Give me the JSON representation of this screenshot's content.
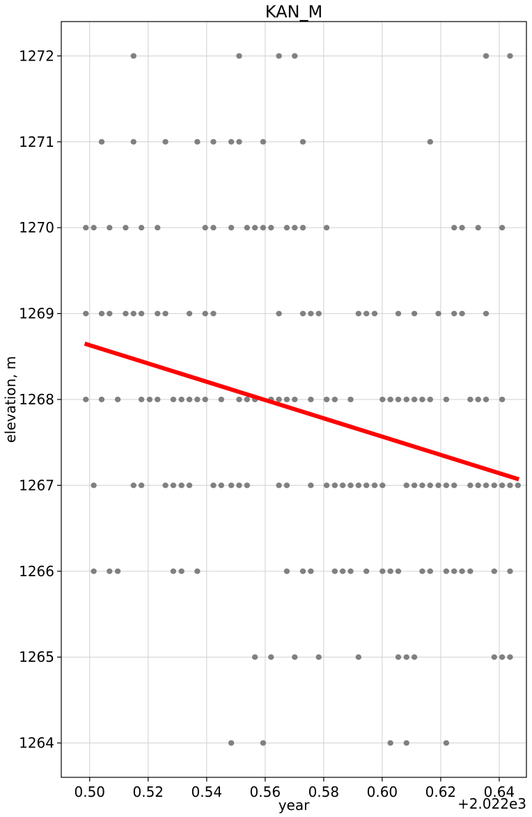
{
  "chart_data": {
    "type": "scatter",
    "title": "KAN_M",
    "xlabel": "year",
    "ylabel": "elevation, m",
    "x_offset_label": "+2.022e3",
    "xlim": [
      0.4903,
      0.6493
    ],
    "ylim": [
      1263.6,
      1272.4
    ],
    "xticks": [
      0.5,
      0.52,
      0.54,
      0.56,
      0.58,
      0.6,
      0.62,
      0.64
    ],
    "xtick_labels": [
      "0.50",
      "0.52",
      "0.54",
      "0.56",
      "0.58",
      "0.60",
      "0.62",
      "0.64"
    ],
    "yticks": [
      1264,
      1265,
      1266,
      1267,
      1268,
      1269,
      1270,
      1271,
      1272
    ],
    "ytick_labels": [
      "1264",
      "1265",
      "1266",
      "1267",
      "1268",
      "1269",
      "1270",
      "1271",
      "1272"
    ],
    "grid": true,
    "point_color": "#808080",
    "trend_color": "#ff0000",
    "series": [
      {
        "kind": "points",
        "points": [
          [
            0.515,
            1272
          ],
          [
            0.5511,
            1272
          ],
          [
            0.5647,
            1272
          ],
          [
            0.5701,
            1272
          ],
          [
            0.6355,
            1272
          ],
          [
            0.6437,
            1272
          ],
          [
            0.5041,
            1271
          ],
          [
            0.515,
            1271
          ],
          [
            0.5259,
            1271
          ],
          [
            0.5368,
            1271
          ],
          [
            0.5423,
            1271
          ],
          [
            0.5484,
            1271
          ],
          [
            0.5511,
            1271
          ],
          [
            0.5593,
            1271
          ],
          [
            0.5729,
            1271
          ],
          [
            0.6164,
            1271
          ],
          [
            0.4987,
            1270
          ],
          [
            0.5014,
            1270
          ],
          [
            0.5068,
            1270
          ],
          [
            0.5123,
            1270
          ],
          [
            0.5177,
            1270
          ],
          [
            0.5232,
            1270
          ],
          [
            0.5395,
            1270
          ],
          [
            0.5423,
            1270
          ],
          [
            0.5484,
            1270
          ],
          [
            0.5538,
            1270
          ],
          [
            0.5565,
            1270
          ],
          [
            0.5593,
            1270
          ],
          [
            0.562,
            1270
          ],
          [
            0.5674,
            1270
          ],
          [
            0.5701,
            1270
          ],
          [
            0.5729,
            1270
          ],
          [
            0.581,
            1270
          ],
          [
            0.6246,
            1270
          ],
          [
            0.6273,
            1270
          ],
          [
            0.6328,
            1270
          ],
          [
            0.641,
            1270
          ],
          [
            0.4987,
            1269
          ],
          [
            0.5041,
            1269
          ],
          [
            0.5068,
            1269
          ],
          [
            0.5123,
            1269
          ],
          [
            0.515,
            1269
          ],
          [
            0.5177,
            1269
          ],
          [
            0.5232,
            1269
          ],
          [
            0.5259,
            1269
          ],
          [
            0.5341,
            1269
          ],
          [
            0.5395,
            1269
          ],
          [
            0.5423,
            1269
          ],
          [
            0.5647,
            1269
          ],
          [
            0.5729,
            1269
          ],
          [
            0.5756,
            1269
          ],
          [
            0.5783,
            1269
          ],
          [
            0.5919,
            1269
          ],
          [
            0.5946,
            1269
          ],
          [
            0.5974,
            1269
          ],
          [
            0.6055,
            1269
          ],
          [
            0.611,
            1269
          ],
          [
            0.6192,
            1269
          ],
          [
            0.6246,
            1269
          ],
          [
            0.6273,
            1269
          ],
          [
            0.6355,
            1269
          ],
          [
            0.4987,
            1268
          ],
          [
            0.5041,
            1268
          ],
          [
            0.5096,
            1268
          ],
          [
            0.5177,
            1268
          ],
          [
            0.5205,
            1268
          ],
          [
            0.5232,
            1268
          ],
          [
            0.5286,
            1268
          ],
          [
            0.5314,
            1268
          ],
          [
            0.5341,
            1268
          ],
          [
            0.5368,
            1268
          ],
          [
            0.5395,
            1268
          ],
          [
            0.545,
            1268
          ],
          [
            0.5511,
            1268
          ],
          [
            0.5538,
            1268
          ],
          [
            0.5565,
            1268
          ],
          [
            0.562,
            1268
          ],
          [
            0.5647,
            1268
          ],
          [
            0.5674,
            1268
          ],
          [
            0.5701,
            1268
          ],
          [
            0.5756,
            1268
          ],
          [
            0.581,
            1268
          ],
          [
            0.5838,
            1268
          ],
          [
            0.5892,
            1268
          ],
          [
            0.6001,
            1268
          ],
          [
            0.6028,
            1268
          ],
          [
            0.6055,
            1268
          ],
          [
            0.6083,
            1268
          ],
          [
            0.611,
            1268
          ],
          [
            0.6137,
            1268
          ],
          [
            0.6164,
            1268
          ],
          [
            0.6219,
            1268
          ],
          [
            0.6301,
            1268
          ],
          [
            0.6328,
            1268
          ],
          [
            0.6355,
            1268
          ],
          [
            0.641,
            1268
          ],
          [
            0.5014,
            1267
          ],
          [
            0.515,
            1267
          ],
          [
            0.5177,
            1267
          ],
          [
            0.5259,
            1267
          ],
          [
            0.5286,
            1267
          ],
          [
            0.5314,
            1267
          ],
          [
            0.5341,
            1267
          ],
          [
            0.5423,
            1267
          ],
          [
            0.545,
            1267
          ],
          [
            0.5484,
            1267
          ],
          [
            0.5511,
            1267
          ],
          [
            0.5538,
            1267
          ],
          [
            0.5647,
            1267
          ],
          [
            0.5674,
            1267
          ],
          [
            0.5756,
            1267
          ],
          [
            0.581,
            1267
          ],
          [
            0.5838,
            1267
          ],
          [
            0.5865,
            1267
          ],
          [
            0.5892,
            1267
          ],
          [
            0.5919,
            1267
          ],
          [
            0.5946,
            1267
          ],
          [
            0.5974,
            1267
          ],
          [
            0.6001,
            1267
          ],
          [
            0.6083,
            1267
          ],
          [
            0.611,
            1267
          ],
          [
            0.6137,
            1267
          ],
          [
            0.6164,
            1267
          ],
          [
            0.6192,
            1267
          ],
          [
            0.6219,
            1267
          ],
          [
            0.6246,
            1267
          ],
          [
            0.6301,
            1267
          ],
          [
            0.6328,
            1267
          ],
          [
            0.6355,
            1267
          ],
          [
            0.6383,
            1267
          ],
          [
            0.641,
            1267
          ],
          [
            0.6437,
            1267
          ],
          [
            0.6464,
            1267
          ],
          [
            0.5014,
            1266
          ],
          [
            0.5068,
            1266
          ],
          [
            0.5096,
            1266
          ],
          [
            0.5286,
            1266
          ],
          [
            0.5314,
            1266
          ],
          [
            0.5368,
            1266
          ],
          [
            0.5674,
            1266
          ],
          [
            0.5729,
            1266
          ],
          [
            0.5756,
            1266
          ],
          [
            0.5838,
            1266
          ],
          [
            0.5865,
            1266
          ],
          [
            0.5892,
            1266
          ],
          [
            0.5946,
            1266
          ],
          [
            0.6001,
            1266
          ],
          [
            0.6028,
            1266
          ],
          [
            0.6055,
            1266
          ],
          [
            0.6137,
            1266
          ],
          [
            0.6164,
            1266
          ],
          [
            0.6219,
            1266
          ],
          [
            0.6246,
            1266
          ],
          [
            0.6273,
            1266
          ],
          [
            0.6301,
            1266
          ],
          [
            0.6383,
            1266
          ],
          [
            0.6437,
            1266
          ],
          [
            0.5565,
            1265
          ],
          [
            0.562,
            1265
          ],
          [
            0.5701,
            1265
          ],
          [
            0.5783,
            1265
          ],
          [
            0.5919,
            1265
          ],
          [
            0.6055,
            1265
          ],
          [
            0.6083,
            1265
          ],
          [
            0.611,
            1265
          ],
          [
            0.6383,
            1265
          ],
          [
            0.641,
            1265
          ],
          [
            0.6437,
            1265
          ],
          [
            0.5484,
            1264
          ],
          [
            0.5593,
            1264
          ],
          [
            0.6028,
            1264
          ],
          [
            0.6083,
            1264
          ],
          [
            0.6219,
            1264
          ]
        ]
      },
      {
        "kind": "trend-line",
        "x": [
          0.4983,
          0.6467
        ],
        "y": [
          1268.65,
          1267.07
        ]
      }
    ]
  }
}
